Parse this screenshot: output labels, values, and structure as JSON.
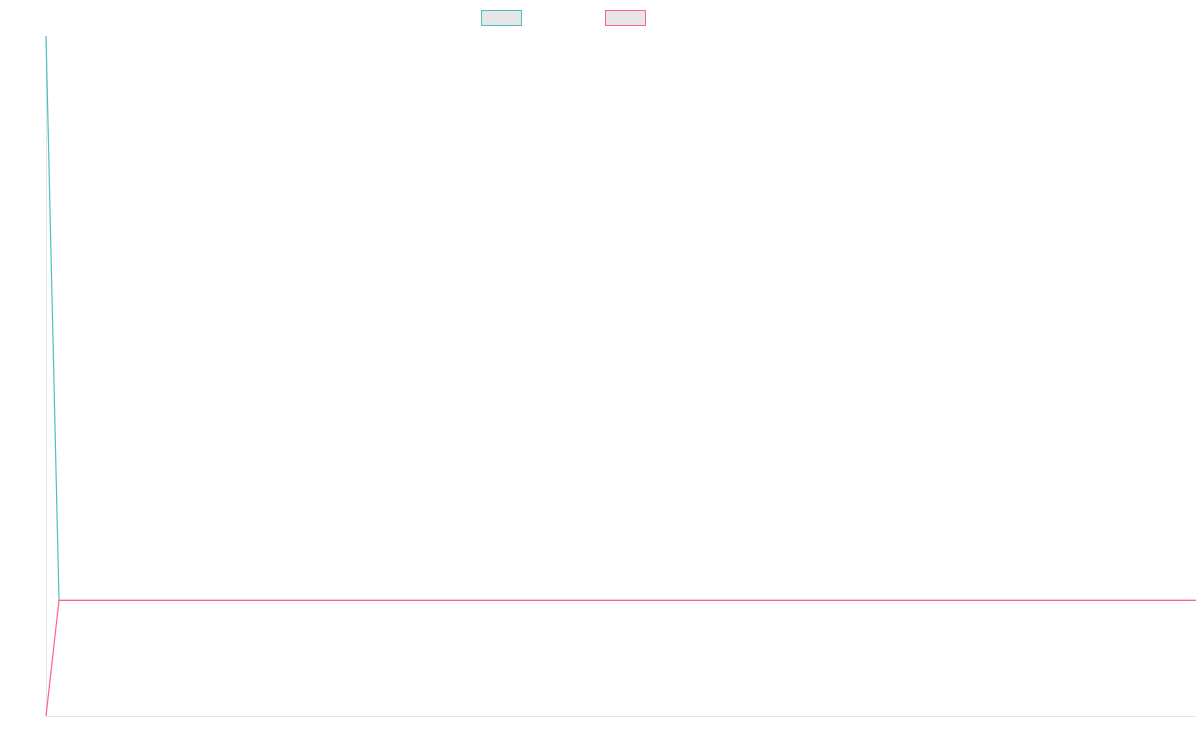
{
  "chart_data": {
    "type": "line",
    "x": [
      "",
      "",
      ""
    ],
    "series": [
      {
        "name": "",
        "color": "#4BC0C0",
        "values": [
          1.0,
          0.17,
          0.17
        ]
      },
      {
        "name": "",
        "color": "#FF6384",
        "values": [
          0.0,
          0.17,
          0.17
        ]
      }
    ],
    "ylim": [
      0,
      1
    ],
    "grid": false,
    "legend": "top-center",
    "title": "",
    "xlabel": "",
    "ylabel": ""
  }
}
